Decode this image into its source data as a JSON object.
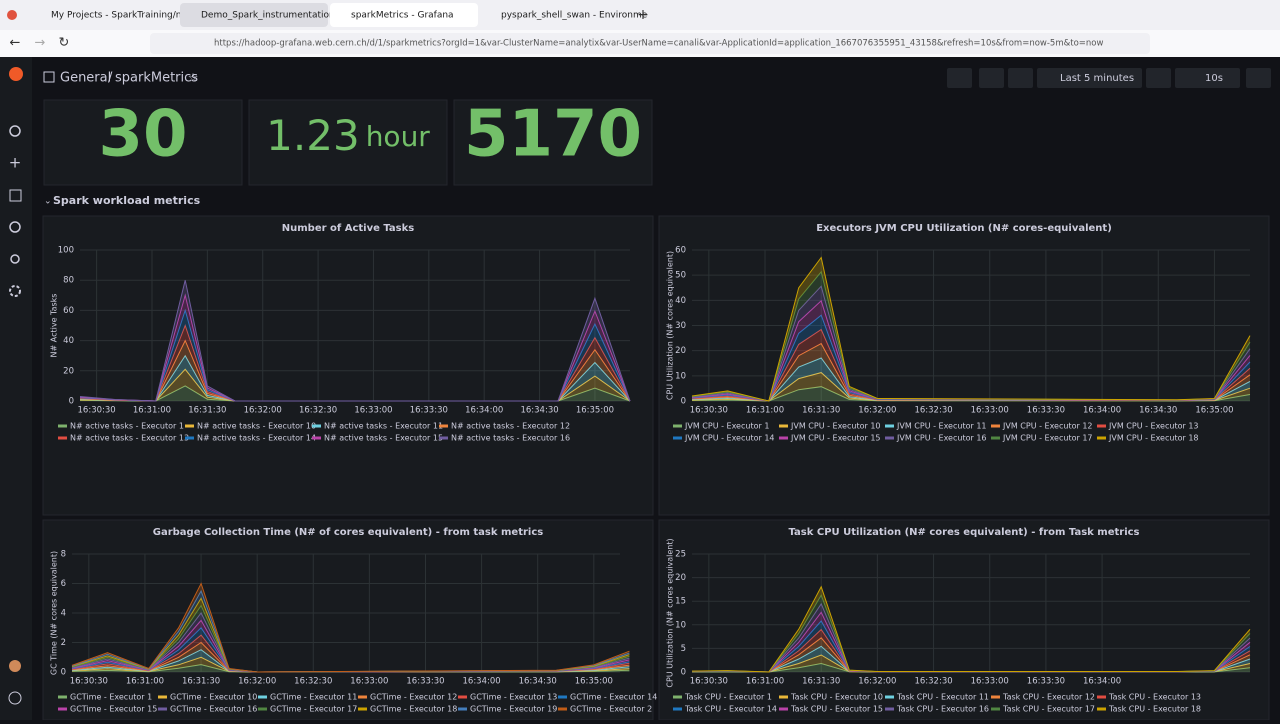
{
  "browser": {
    "tabs": [
      "My Projects - SparkTraining/not",
      "Demo_Spark_instrumentation",
      "sparkMetrics - Grafana",
      "pyspark_shell_swan - Environme"
    ],
    "url": "https://hadoop-grafana.web.cern.ch/d/1/sparkmetrics?orgId=1&var-ClusterName=analytix&var-UserName=canali&var-ApplicationId=application_1667076355951_43158&refresh=10s&from=now-5m&to=now"
  },
  "grafana": {
    "folder": "General",
    "separator": "/",
    "dashboard": "sparkMetrics",
    "time_range": "Last 5 minutes",
    "refresh": "10s",
    "stats": [
      {
        "value": 30
      },
      {
        "value": 1.23,
        "unit": "hour"
      },
      {
        "value": 5170
      }
    ],
    "section": "Spark workload metrics"
  },
  "chart_data": [
    {
      "type": "area",
      "stacked": true,
      "title": "Number of Active Tasks",
      "ylabel": "N# Active Tasks",
      "x": [
        59421,
        59440,
        59462,
        59478,
        59490,
        59505,
        59520,
        59680,
        59700,
        59719
      ],
      "xlim": [
        59421,
        59719
      ],
      "xticks": [
        {
          "value": 59430,
          "label": "16:30:30"
        },
        {
          "value": 59460,
          "label": "16:31:00"
        },
        {
          "value": 59490,
          "label": "16:31:30"
        },
        {
          "value": 59520,
          "label": "16:32:00"
        },
        {
          "value": 59550,
          "label": "16:32:30"
        },
        {
          "value": 59580,
          "label": "16:33:00"
        },
        {
          "value": 59610,
          "label": "16:33:30"
        },
        {
          "value": 59640,
          "label": "16:34:00"
        },
        {
          "value": 59670,
          "label": "16:34:30"
        },
        {
          "value": 59700,
          "label": "16:35:00"
        }
      ],
      "ylim": [
        0,
        100
      ],
      "yticks": [
        0,
        20,
        40,
        60,
        80,
        100
      ],
      "grid": true,
      "series": [
        {
          "name": "N# active tasks - Executor 1",
          "color": "#7EB26D",
          "values": [
            0.4,
            0.1,
            0,
            10,
            1.2,
            0,
            0,
            0,
            8.5,
            0
          ]
        },
        {
          "name": "N# active tasks - Executor 10",
          "color": "#EAB839",
          "values": [
            0.3,
            0.2,
            0,
            11,
            1.3,
            0,
            0,
            0,
            8,
            0
          ]
        },
        {
          "name": "N# active tasks - Executor 11",
          "color": "#6ED0E0",
          "values": [
            0.4,
            0.1,
            0,
            9,
            1.2,
            0,
            0,
            0,
            9,
            0
          ]
        },
        {
          "name": "N# active tasks - Executor 12",
          "color": "#EF843C",
          "values": [
            0.4,
            0.1,
            0,
            10,
            1.3,
            0,
            0,
            0,
            8.5,
            0
          ]
        },
        {
          "name": "N# active tasks - Executor 13",
          "color": "#E24D42",
          "values": [
            0.3,
            0.1,
            0,
            10,
            1.2,
            0,
            0,
            0,
            8,
            0
          ]
        },
        {
          "name": "N# active tasks - Executor 14",
          "color": "#1F78C1",
          "values": [
            0.4,
            0.2,
            0,
            10,
            1.3,
            0,
            0,
            0,
            9,
            0
          ]
        },
        {
          "name": "N# active tasks - Executor 15",
          "color": "#BA43A9",
          "values": [
            0.4,
            0.1,
            0,
            10,
            1.2,
            0,
            0,
            0,
            8.5,
            0
          ]
        },
        {
          "name": "N# active tasks - Executor 16",
          "color": "#705DA0",
          "values": [
            0.4,
            0.1,
            0,
            10,
            1.3,
            0,
            0,
            0,
            8.5,
            0
          ]
        }
      ]
    },
    {
      "type": "area",
      "stacked": true,
      "title": "Executors JVM CPU Utilization (N# cores-equivalent)",
      "ylabel": "CPU Utilization (N# cores equivalent)",
      "x": [
        59421,
        59440,
        59462,
        59478,
        59490,
        59505,
        59520,
        59680,
        59700,
        59719
      ],
      "xlim": [
        59421,
        59719
      ],
      "xticks": [
        {
          "value": 59430,
          "label": "16:30:30"
        },
        {
          "value": 59460,
          "label": "16:31:00"
        },
        {
          "value": 59490,
          "label": "16:31:30"
        },
        {
          "value": 59520,
          "label": "16:32:00"
        },
        {
          "value": 59550,
          "label": "16:32:30"
        },
        {
          "value": 59580,
          "label": "16:33:00"
        },
        {
          "value": 59610,
          "label": "16:33:30"
        },
        {
          "value": 59640,
          "label": "16:34:00"
        },
        {
          "value": 59670,
          "label": "16:34:30"
        },
        {
          "value": 59700,
          "label": "16:35:00"
        }
      ],
      "ylim": [
        0,
        60
      ],
      "yticks": [
        0,
        10,
        20,
        30,
        40,
        50,
        60
      ],
      "grid": true,
      "series": [
        {
          "name": "JVM CPU - Executor 1",
          "color": "#7EB26D",
          "values": [
            0.2,
            0.4,
            0,
            4.5,
            5.7,
            0.6,
            0.1,
            0.05,
            0.1,
            2.6
          ]
        },
        {
          "name": "JVM CPU - Executor 10",
          "color": "#EAB839",
          "values": [
            0.2,
            0.4,
            0,
            4.4,
            5.6,
            0.6,
            0.1,
            0.05,
            0.1,
            2.5
          ]
        },
        {
          "name": "JVM CPU - Executor 11",
          "color": "#6ED0E0",
          "values": [
            0.2,
            0.4,
            0,
            4.6,
            5.8,
            0.5,
            0.1,
            0.05,
            0.1,
            2.7
          ]
        },
        {
          "name": "JVM CPU - Executor 12",
          "color": "#EF843C",
          "values": [
            0.2,
            0.4,
            0,
            4.5,
            5.7,
            0.6,
            0.1,
            0.05,
            0.1,
            2.6
          ]
        },
        {
          "name": "JVM CPU - Executor 13",
          "color": "#E24D42",
          "values": [
            0.2,
            0.4,
            0,
            4.5,
            5.6,
            0.6,
            0.1,
            0.05,
            0.1,
            2.6
          ]
        },
        {
          "name": "JVM CPU - Executor 14",
          "color": "#1F78C1",
          "values": [
            0.2,
            0.4,
            0,
            4.4,
            5.7,
            0.6,
            0.1,
            0.05,
            0.1,
            2.5
          ]
        },
        {
          "name": "JVM CPU - Executor 15",
          "color": "#BA43A9",
          "values": [
            0.2,
            0.4,
            0,
            4.6,
            5.7,
            0.5,
            0.1,
            0.05,
            0.1,
            2.6
          ]
        },
        {
          "name": "JVM CPU - Executor 16",
          "color": "#705DA0",
          "values": [
            0.2,
            0.4,
            0,
            4.5,
            5.8,
            0.6,
            0.1,
            0.05,
            0.1,
            2.7
          ]
        },
        {
          "name": "JVM CPU - Executor 17",
          "color": "#508642",
          "values": [
            0.2,
            0.4,
            0,
            4.5,
            5.7,
            0.6,
            0.1,
            0.05,
            0.1,
            2.6
          ]
        },
        {
          "name": "JVM CPU - Executor 18",
          "color": "#CCA300",
          "values": [
            0.2,
            0.4,
            0,
            4.5,
            5.7,
            0.6,
            0.1,
            0.05,
            0.1,
            2.6
          ]
        }
      ]
    },
    {
      "type": "area",
      "stacked": true,
      "title": "Garbage Collection Time (N# of cores equivalent) - from task metrics",
      "ylabel": "GC Time (N# cores equivalent)",
      "x": [
        59421,
        59440,
        59462,
        59478,
        59490,
        59505,
        59520,
        59680,
        59700,
        59719
      ],
      "xlim": [
        59421,
        59714
      ],
      "xticks": [
        {
          "value": 59430,
          "label": "16:30:30"
        },
        {
          "value": 59460,
          "label": "16:31:00"
        },
        {
          "value": 59490,
          "label": "16:31:30"
        },
        {
          "value": 59520,
          "label": "16:32:00"
        },
        {
          "value": 59550,
          "label": "16:32:30"
        },
        {
          "value": 59580,
          "label": "16:33:00"
        },
        {
          "value": 59610,
          "label": "16:33:30"
        },
        {
          "value": 59640,
          "label": "16:34:00"
        },
        {
          "value": 59670,
          "label": "16:34:30"
        },
        {
          "value": 59700,
          "label": "16:35:00"
        }
      ],
      "ylim": [
        0,
        8
      ],
      "yticks": [
        0,
        2,
        4,
        6,
        8
      ],
      "grid": true,
      "series": [
        {
          "name": "GCTime - Executor 1",
          "color": "#7EB26D",
          "values": [
            0.04,
            0.11,
            0.02,
            0.25,
            0.5,
            0.02,
            0,
            0.01,
            0.04,
            0.12
          ]
        },
        {
          "name": "GCTime - Executor 10",
          "color": "#EAB839",
          "values": [
            0.04,
            0.11,
            0.02,
            0.24,
            0.5,
            0.02,
            0,
            0.01,
            0.04,
            0.11
          ]
        },
        {
          "name": "GCTime - Executor 11",
          "color": "#6ED0E0",
          "values": [
            0.03,
            0.1,
            0.02,
            0.26,
            0.51,
            0.02,
            0,
            0.01,
            0.04,
            0.12
          ]
        },
        {
          "name": "GCTime - Executor 12",
          "color": "#EF843C",
          "values": [
            0.04,
            0.11,
            0.02,
            0.25,
            0.49,
            0.02,
            0,
            0.01,
            0.04,
            0.12
          ]
        },
        {
          "name": "GCTime - Executor 13",
          "color": "#E24D42",
          "values": [
            0.04,
            0.12,
            0.02,
            0.25,
            0.5,
            0.02,
            0,
            0.01,
            0.04,
            0.12
          ]
        },
        {
          "name": "GCTime - Executor 14",
          "color": "#1F78C1",
          "values": [
            0.03,
            0.11,
            0.02,
            0.25,
            0.5,
            0.02,
            0,
            0.01,
            0.04,
            0.11
          ]
        },
        {
          "name": "GCTime - Executor 15",
          "color": "#BA43A9",
          "values": [
            0.04,
            0.11,
            0.02,
            0.25,
            0.5,
            0.02,
            0,
            0.01,
            0.04,
            0.12
          ]
        },
        {
          "name": "GCTime - Executor 16",
          "color": "#705DA0",
          "values": [
            0.04,
            0.11,
            0.02,
            0.26,
            0.5,
            0.02,
            0,
            0.01,
            0.04,
            0.12
          ]
        },
        {
          "name": "GCTime - Executor 17",
          "color": "#508642",
          "values": [
            0.04,
            0.1,
            0.02,
            0.25,
            0.5,
            0.02,
            0,
            0.01,
            0.04,
            0.12
          ]
        },
        {
          "name": "GCTime - Executor 18",
          "color": "#CCA300",
          "values": [
            0.04,
            0.11,
            0.02,
            0.25,
            0.5,
            0.02,
            0,
            0.01,
            0.04,
            0.12
          ]
        },
        {
          "name": "GCTime - Executor 19",
          "color": "#447EBC",
          "values": [
            0.03,
            0.11,
            0.02,
            0.25,
            0.5,
            0.02,
            0,
            0.01,
            0.04,
            0.11
          ]
        },
        {
          "name": "GCTime - Executor 2",
          "color": "#C15C17",
          "values": [
            0.04,
            0.11,
            0.02,
            0.24,
            0.5,
            0.02,
            0,
            0.01,
            0.04,
            0.12
          ]
        }
      ]
    },
    {
      "type": "area",
      "stacked": true,
      "title": "Task CPU Utilization (N# cores equivalent) - from Task metrics",
      "ylabel": "CPU Utilization (N# cores equivalent)",
      "x": [
        59421,
        59440,
        59462,
        59478,
        59490,
        59505,
        59520,
        59680,
        59700,
        59719
      ],
      "xlim": [
        59421,
        59719
      ],
      "xticks": [
        {
          "value": 59430,
          "label": "16:30:30"
        },
        {
          "value": 59460,
          "label": "16:31:00"
        },
        {
          "value": 59490,
          "label": "16:31:30"
        },
        {
          "value": 59520,
          "label": "16:32:00"
        },
        {
          "value": 59550,
          "label": "16:32:30"
        },
        {
          "value": 59580,
          "label": "16:33:00"
        },
        {
          "value": 59610,
          "label": "16:33:30"
        },
        {
          "value": 59640,
          "label": "16:34:00"
        }
      ],
      "ylim": [
        0,
        25
      ],
      "yticks": [
        0,
        5,
        10,
        15,
        20,
        25
      ],
      "grid": true,
      "series": [
        {
          "name": "Task CPU - Executor 1",
          "color": "#7EB26D",
          "values": [
            0.02,
            0.03,
            0,
            0.9,
            1.8,
            0.04,
            0.01,
            0.01,
            0.03,
            0.9
          ]
        },
        {
          "name": "Task CPU - Executor 10",
          "color": "#EAB839",
          "values": [
            0.02,
            0.03,
            0,
            0.9,
            1.8,
            0.04,
            0.01,
            0.01,
            0.03,
            0.9
          ]
        },
        {
          "name": "Task CPU - Executor 11",
          "color": "#6ED0E0",
          "values": [
            0.02,
            0.03,
            0,
            0.95,
            1.85,
            0.04,
            0.01,
            0.01,
            0.03,
            0.95
          ]
        },
        {
          "name": "Task CPU - Executor 12",
          "color": "#EF843C",
          "values": [
            0.02,
            0.03,
            0,
            0.9,
            1.8,
            0.04,
            0.01,
            0.01,
            0.03,
            0.9
          ]
        },
        {
          "name": "Task CPU - Executor 13",
          "color": "#E24D42",
          "values": [
            0.02,
            0.03,
            0,
            0.85,
            1.75,
            0.04,
            0.01,
            0.01,
            0.03,
            0.85
          ]
        },
        {
          "name": "Task CPU - Executor 14",
          "color": "#1F78C1",
          "values": [
            0.02,
            0.03,
            0,
            0.9,
            1.8,
            0.04,
            0.01,
            0.01,
            0.03,
            0.9
          ]
        },
        {
          "name": "Task CPU - Executor 15",
          "color": "#BA43A9",
          "values": [
            0.02,
            0.03,
            0,
            0.9,
            1.85,
            0.04,
            0.01,
            0.01,
            0.03,
            0.9
          ]
        },
        {
          "name": "Task CPU - Executor 16",
          "color": "#705DA0",
          "values": [
            0.02,
            0.03,
            0,
            0.9,
            1.8,
            0.04,
            0.01,
            0.01,
            0.03,
            0.9
          ]
        },
        {
          "name": "Task CPU - Executor 17",
          "color": "#508642",
          "values": [
            0.02,
            0.03,
            0,
            0.95,
            1.8,
            0.04,
            0.01,
            0.01,
            0.03,
            0.95
          ]
        },
        {
          "name": "Task CPU - Executor 18",
          "color": "#CCA300",
          "values": [
            0.02,
            0.03,
            0,
            0.9,
            1.8,
            0.04,
            0.01,
            0.01,
            0.03,
            0.9
          ]
        }
      ]
    }
  ]
}
